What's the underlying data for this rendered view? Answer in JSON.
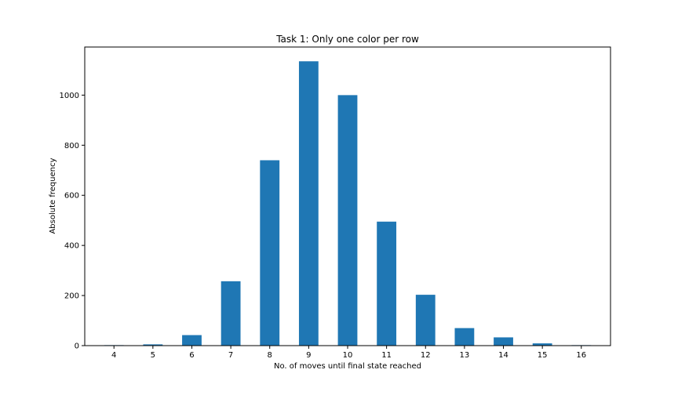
{
  "chart_data": {
    "type": "bar",
    "title": "Task 1: Only one color per row",
    "xlabel": "No. of moves until final state reached",
    "ylabel": "Absolute frequency",
    "categories": [
      "4",
      "5",
      "6",
      "7",
      "8",
      "9",
      "10",
      "11",
      "12",
      "13",
      "14",
      "15",
      "16"
    ],
    "values": [
      2,
      5,
      42,
      257,
      740,
      1135,
      1000,
      495,
      203,
      70,
      33,
      9,
      2
    ],
    "yticks": [
      0,
      200,
      400,
      600,
      800,
      1000
    ],
    "ylim": [
      0,
      1192
    ],
    "grid": false,
    "bar_color": "#1f77b4"
  }
}
